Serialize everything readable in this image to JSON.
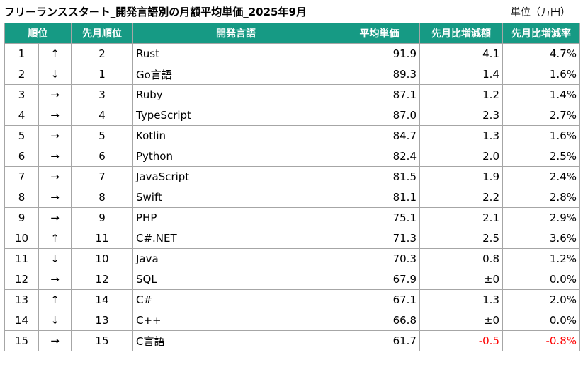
{
  "title": "フリーランススタート_開発言語別の月額平均単価_2025年9月",
  "unit": "単位（万円）",
  "colors": {
    "header_bg": "#169a84",
    "header_text": "#ffffff",
    "negative": "#ff0000"
  },
  "headers": {
    "rank": "順位",
    "prev_rank": "先月順位",
    "language": "開発言語",
    "avg_price": "平均単価",
    "mom_change": "先月比増減額",
    "mom_rate": "先月比増減率"
  },
  "rows": [
    {
      "rank": "1",
      "trend": "↑",
      "prev": "2",
      "lang": "Rust",
      "avg": "91.9",
      "chg": "4.1",
      "rate": "4.7%"
    },
    {
      "rank": "2",
      "trend": "↓",
      "prev": "1",
      "lang": "Go言語",
      "avg": "89.3",
      "chg": "1.4",
      "rate": "1.6%"
    },
    {
      "rank": "3",
      "trend": "→",
      "prev": "3",
      "lang": "Ruby",
      "avg": "87.1",
      "chg": "1.2",
      "rate": "1.4%"
    },
    {
      "rank": "4",
      "trend": "→",
      "prev": "4",
      "lang": "TypeScript",
      "avg": "87.0",
      "chg": "2.3",
      "rate": "2.7%"
    },
    {
      "rank": "5",
      "trend": "→",
      "prev": "5",
      "lang": "Kotlin",
      "avg": "84.7",
      "chg": "1.3",
      "rate": "1.6%"
    },
    {
      "rank": "6",
      "trend": "→",
      "prev": "6",
      "lang": "Python",
      "avg": "82.4",
      "chg": "2.0",
      "rate": "2.5%"
    },
    {
      "rank": "7",
      "trend": "→",
      "prev": "7",
      "lang": "JavaScript",
      "avg": "81.5",
      "chg": "1.9",
      "rate": "2.4%"
    },
    {
      "rank": "8",
      "trend": "→",
      "prev": "8",
      "lang": "Swift",
      "avg": "81.1",
      "chg": "2.2",
      "rate": "2.8%"
    },
    {
      "rank": "9",
      "trend": "→",
      "prev": "9",
      "lang": "PHP",
      "avg": "75.1",
      "chg": "2.1",
      "rate": "2.9%"
    },
    {
      "rank": "10",
      "trend": "↑",
      "prev": "11",
      "lang": "C#.NET",
      "avg": "71.3",
      "chg": "2.5",
      "rate": "3.6%"
    },
    {
      "rank": "11",
      "trend": "↓",
      "prev": "10",
      "lang": "Java",
      "avg": "70.3",
      "chg": "0.8",
      "rate": "1.2%"
    },
    {
      "rank": "12",
      "trend": "→",
      "prev": "12",
      "lang": "SQL",
      "avg": "67.9",
      "chg": "±0",
      "rate": "0.0%"
    },
    {
      "rank": "13",
      "trend": "↑",
      "prev": "14",
      "lang": "C#",
      "avg": "67.1",
      "chg": "1.3",
      "rate": "2.0%"
    },
    {
      "rank": "14",
      "trend": "↓",
      "prev": "13",
      "lang": "C++",
      "avg": "66.8",
      "chg": "±0",
      "rate": "0.0%"
    },
    {
      "rank": "15",
      "trend": "→",
      "prev": "15",
      "lang": "C言語",
      "avg": "61.7",
      "chg": "-0.5",
      "rate": "-0.8%",
      "negative": true
    }
  ]
}
